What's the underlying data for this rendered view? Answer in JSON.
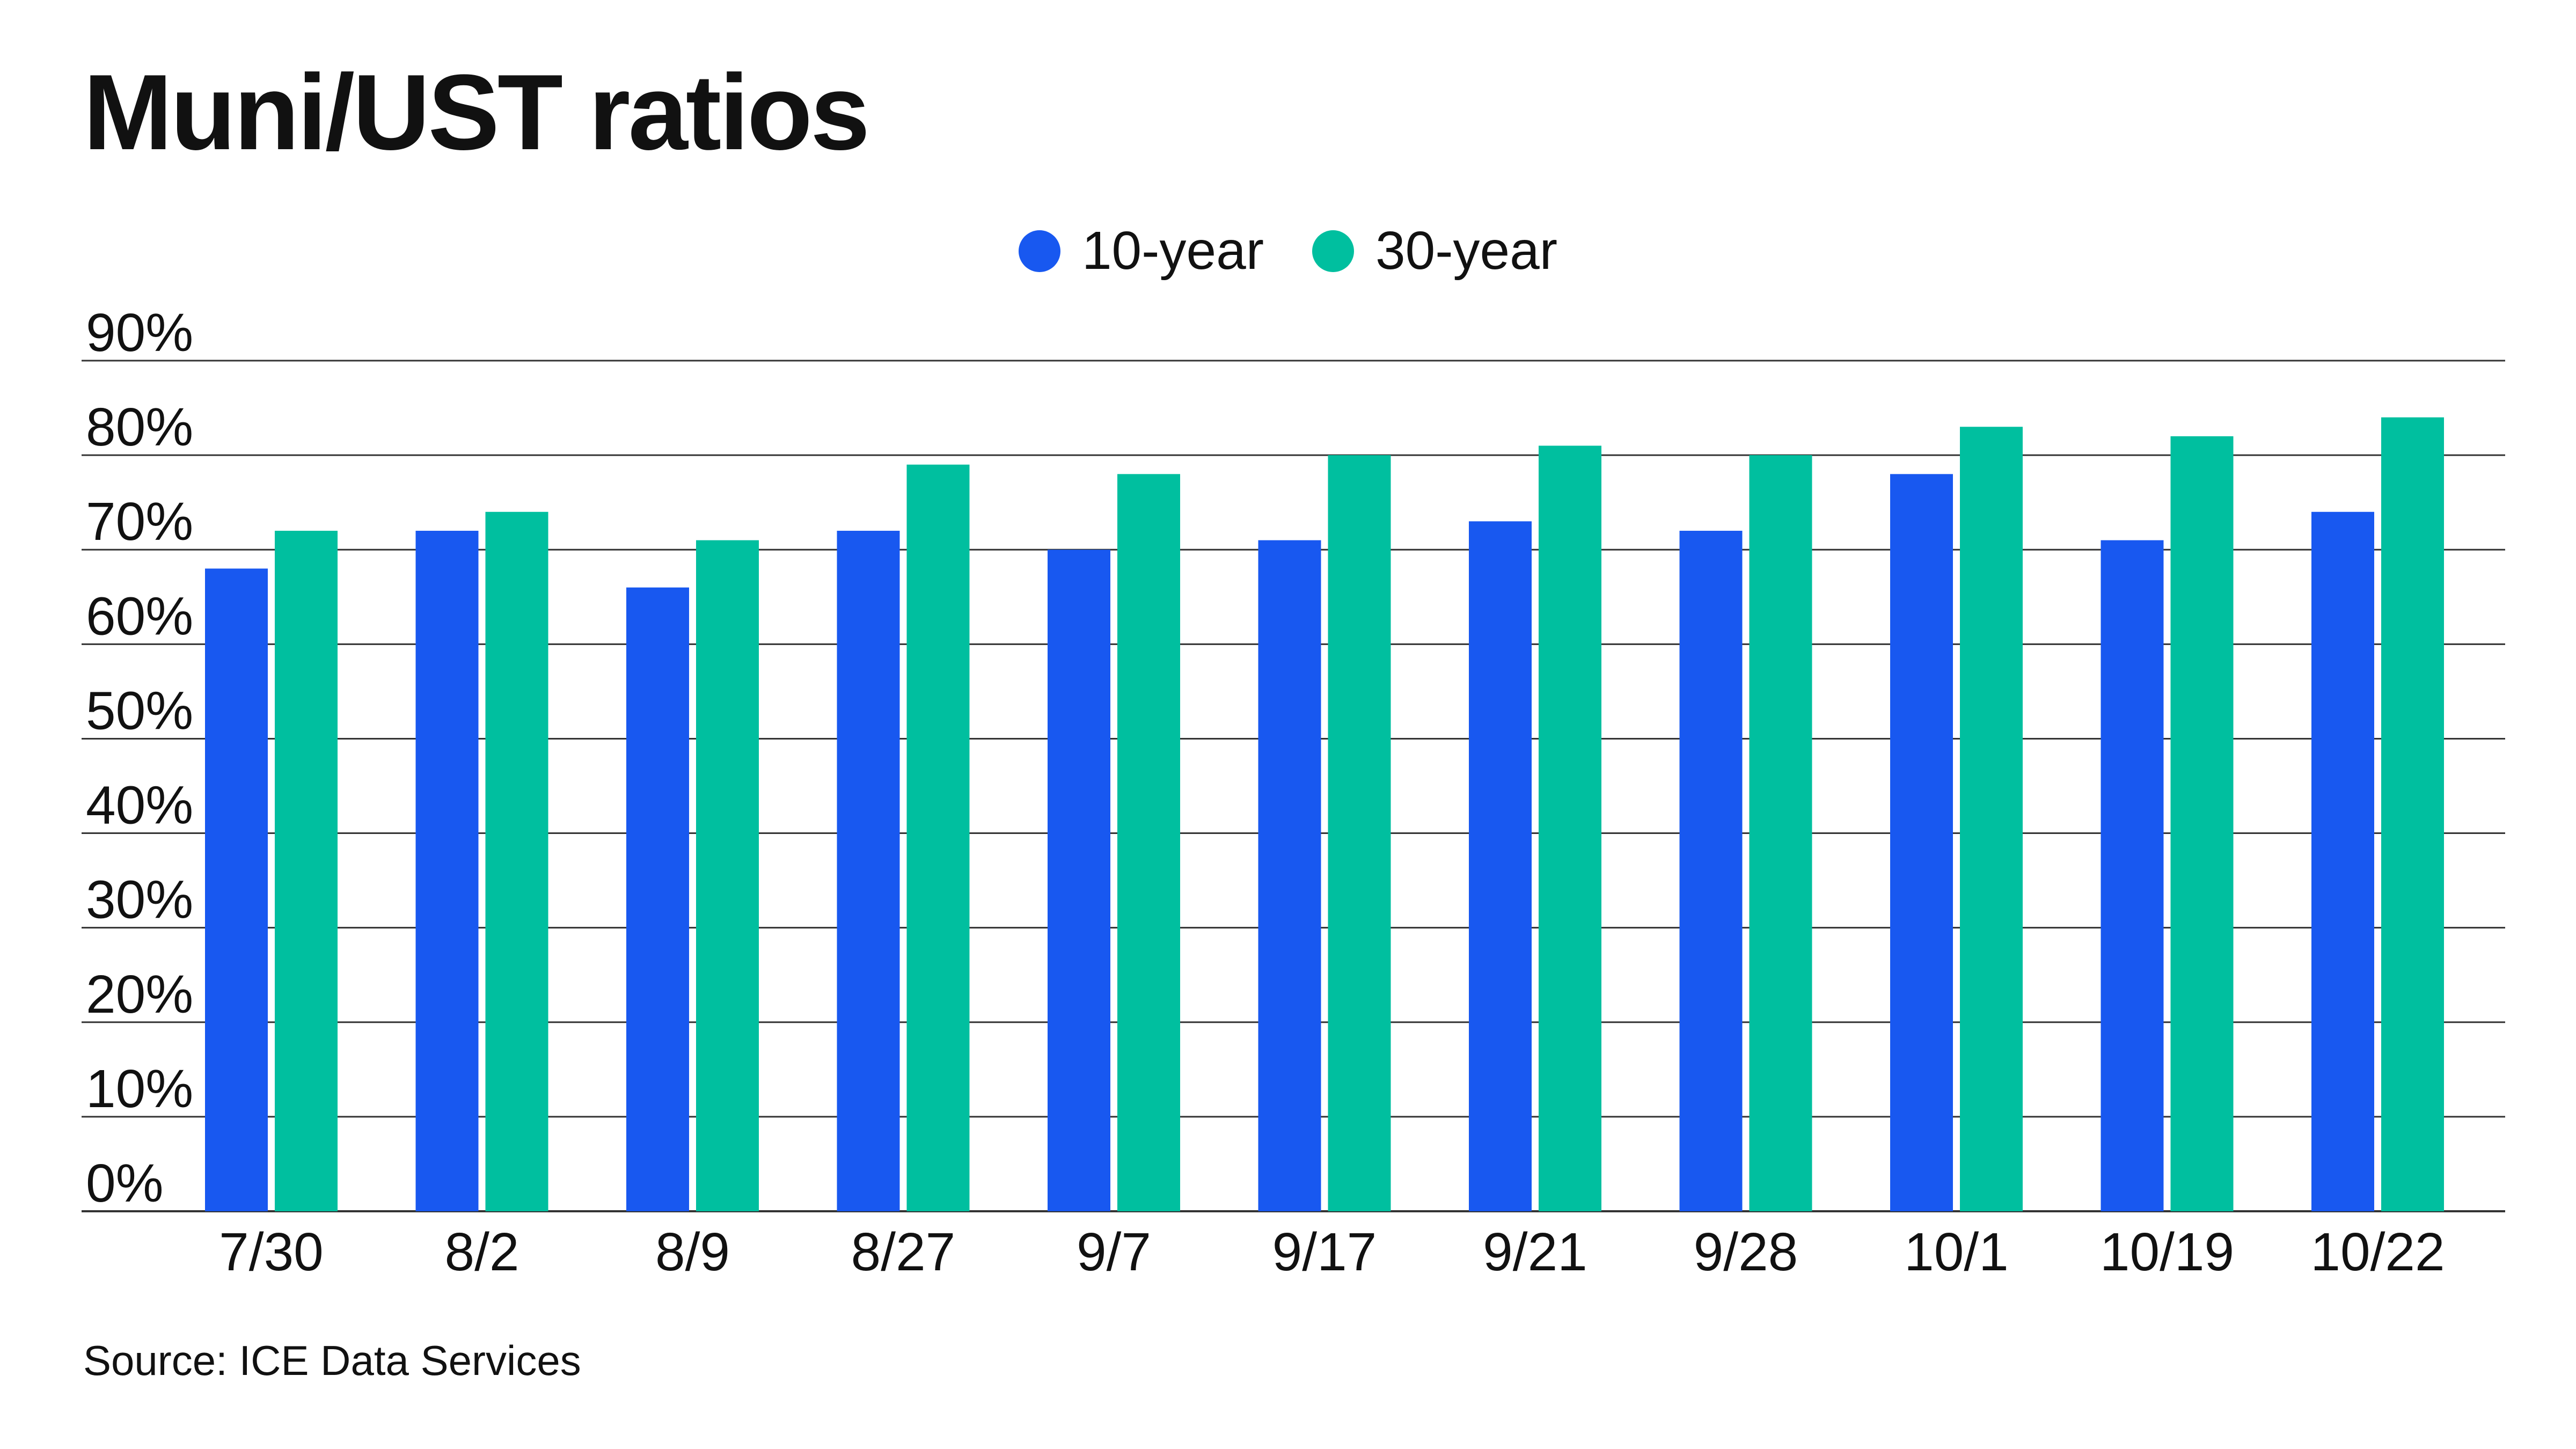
{
  "title": "Muni/UST ratios",
  "source": "Source: ICE Data Services",
  "colors": {
    "ten_year": "#1858f0",
    "thirty_year": "#00bf9f",
    "grid": "#333333"
  },
  "chart_data": {
    "type": "bar",
    "title": "Muni/UST ratios",
    "categories": [
      "7/30",
      "8/2",
      "8/9",
      "8/27",
      "9/7",
      "9/17",
      "9/21",
      "9/28",
      "10/1",
      "10/19",
      "10/22"
    ],
    "series": [
      {
        "name": "10-year",
        "color": "#1858f0",
        "values": [
          68,
          72,
          66,
          72,
          70,
          71,
          73,
          72,
          78,
          71,
          74
        ]
      },
      {
        "name": "30-year",
        "color": "#00bf9f",
        "values": [
          72,
          74,
          71,
          79,
          78,
          80,
          81,
          80,
          83,
          82,
          84
        ]
      }
    ],
    "ylim": [
      0,
      90
    ],
    "yticks": [
      "0%",
      "10%",
      "20%",
      "30%",
      "40%",
      "50%",
      "60%",
      "70%",
      "80%",
      "90%"
    ],
    "grid": true,
    "legend": "top-center",
    "xlabel": "",
    "ylabel": ""
  }
}
